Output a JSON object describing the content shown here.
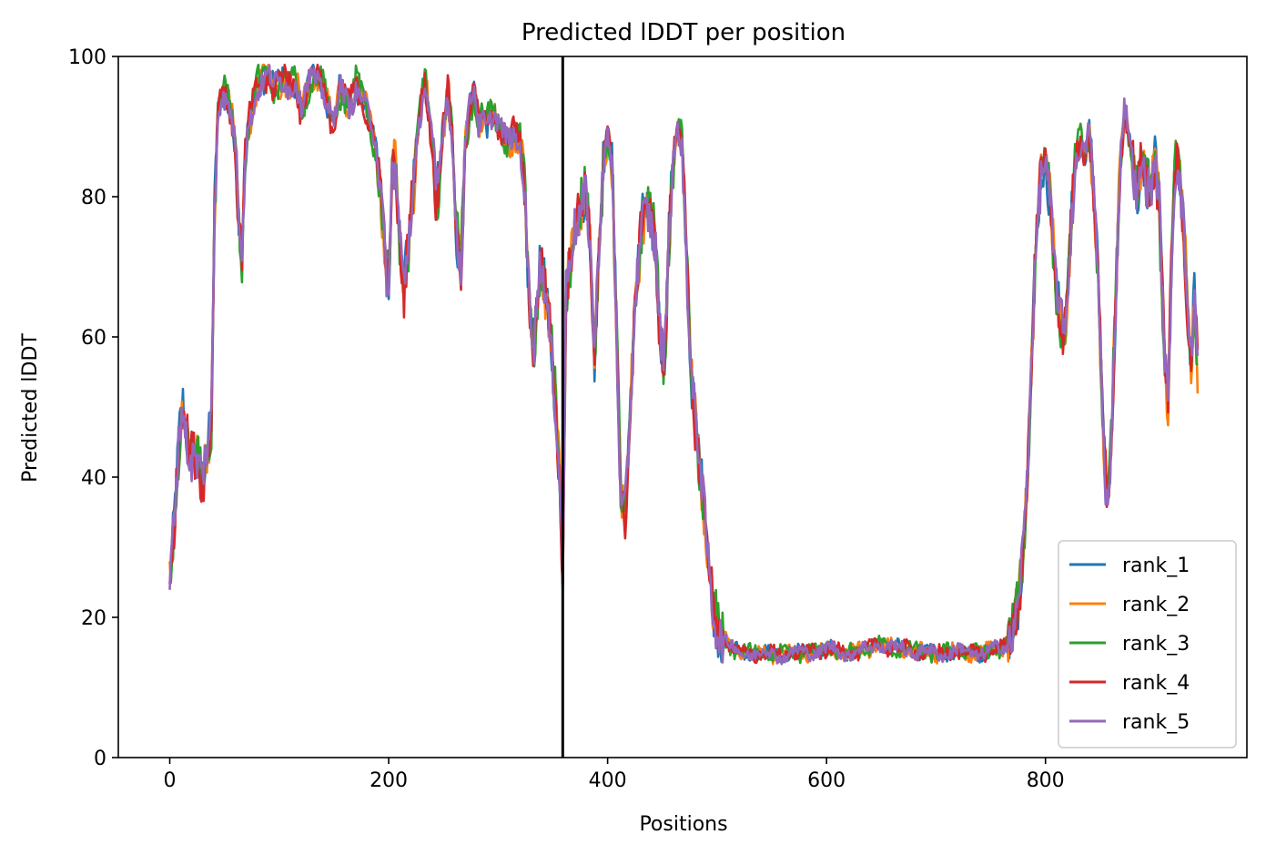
{
  "chart_data": {
    "type": "line",
    "title": "Predicted lDDT per position",
    "xlabel": "Positions",
    "ylabel": "Predicted lDDT",
    "xlim": [
      -47,
      984
    ],
    "ylim": [
      0,
      100
    ],
    "xticks": [
      0,
      200,
      400,
      600,
      800
    ],
    "yticks": [
      0,
      20,
      40,
      60,
      80,
      100
    ],
    "grid": false,
    "legend_position": "lower right",
    "vline_x": 359,
    "vline_color": "#000000",
    "base_profile": [
      [
        0,
        24
      ],
      [
        3,
        31
      ],
      [
        6,
        38
      ],
      [
        9,
        46
      ],
      [
        12,
        50
      ],
      [
        15,
        46
      ],
      [
        18,
        43
      ],
      [
        22,
        44
      ],
      [
        26,
        42
      ],
      [
        30,
        40
      ],
      [
        34,
        43
      ],
      [
        38,
        47
      ],
      [
        41,
        78
      ],
      [
        44,
        92
      ],
      [
        47,
        95
      ],
      [
        50,
        95
      ],
      [
        53,
        94
      ],
      [
        56,
        92
      ],
      [
        60,
        87
      ],
      [
        63,
        77
      ],
      [
        66,
        72
      ],
      [
        69,
        85
      ],
      [
        72,
        90
      ],
      [
        76,
        93
      ],
      [
        80,
        96
      ],
      [
        85,
        97
      ],
      [
        90,
        97
      ],
      [
        95,
        95
      ],
      [
        100,
        96
      ],
      [
        105,
        97
      ],
      [
        110,
        96
      ],
      [
        115,
        97
      ],
      [
        120,
        92
      ],
      [
        125,
        95
      ],
      [
        130,
        97
      ],
      [
        135,
        97
      ],
      [
        140,
        96
      ],
      [
        145,
        93
      ],
      [
        150,
        90
      ],
      [
        155,
        95
      ],
      [
        160,
        94
      ],
      [
        165,
        93
      ],
      [
        170,
        96
      ],
      [
        175,
        95
      ],
      [
        180,
        92
      ],
      [
        185,
        89
      ],
      [
        190,
        85
      ],
      [
        194,
        78
      ],
      [
        197,
        72
      ],
      [
        200,
        66
      ],
      [
        203,
        85
      ],
      [
        206,
        84
      ],
      [
        210,
        74
      ],
      [
        214,
        66
      ],
      [
        218,
        73
      ],
      [
        222,
        80
      ],
      [
        226,
        88
      ],
      [
        230,
        94
      ],
      [
        233,
        97
      ],
      [
        236,
        93
      ],
      [
        240,
        87
      ],
      [
        243,
        80
      ],
      [
        246,
        82
      ],
      [
        250,
        90
      ],
      [
        254,
        95
      ],
      [
        258,
        89
      ],
      [
        262,
        75
      ],
      [
        266,
        70
      ],
      [
        270,
        88
      ],
      [
        274,
        92
      ],
      [
        278,
        95
      ],
      [
        282,
        90
      ],
      [
        286,
        92
      ],
      [
        290,
        91
      ],
      [
        295,
        92
      ],
      [
        300,
        90
      ],
      [
        305,
        88
      ],
      [
        310,
        88
      ],
      [
        315,
        89
      ],
      [
        320,
        88
      ],
      [
        324,
        82
      ],
      [
        327,
        70
      ],
      [
        330,
        62
      ],
      [
        333,
        58
      ],
      [
        336,
        66
      ],
      [
        339,
        70
      ],
      [
        342,
        68
      ],
      [
        345,
        64
      ],
      [
        348,
        60
      ],
      [
        352,
        52
      ],
      [
        356,
        40
      ],
      [
        359,
        27
      ],
      [
        362,
        66
      ],
      [
        366,
        71
      ],
      [
        370,
        75
      ],
      [
        375,
        78
      ],
      [
        380,
        82
      ],
      [
        384,
        74
      ],
      [
        388,
        57
      ],
      [
        392,
        72
      ],
      [
        396,
        84
      ],
      [
        400,
        88
      ],
      [
        404,
        85
      ],
      [
        408,
        63
      ],
      [
        412,
        37
      ],
      [
        416,
        35
      ],
      [
        420,
        46
      ],
      [
        424,
        61
      ],
      [
        428,
        70
      ],
      [
        432,
        77
      ],
      [
        436,
        79
      ],
      [
        440,
        77
      ],
      [
        444,
        73
      ],
      [
        448,
        60
      ],
      [
        452,
        56
      ],
      [
        456,
        74
      ],
      [
        460,
        85
      ],
      [
        464,
        90
      ],
      [
        468,
        88
      ],
      [
        472,
        72
      ],
      [
        476,
        55
      ],
      [
        480,
        48
      ],
      [
        484,
        42
      ],
      [
        488,
        35
      ],
      [
        492,
        28
      ],
      [
        496,
        22
      ],
      [
        500,
        19
      ],
      [
        505,
        17
      ],
      [
        510,
        16
      ],
      [
        515,
        15.5
      ],
      [
        520,
        15
      ],
      [
        530,
        15
      ],
      [
        540,
        14.8
      ],
      [
        550,
        14.8
      ],
      [
        560,
        14.7
      ],
      [
        570,
        14.8
      ],
      [
        580,
        15
      ],
      [
        590,
        15.2
      ],
      [
        600,
        15.5
      ],
      [
        610,
        15.2
      ],
      [
        620,
        15
      ],
      [
        630,
        15.2
      ],
      [
        640,
        15.5
      ],
      [
        645,
        16.5
      ],
      [
        650,
        16
      ],
      [
        660,
        15.6
      ],
      [
        670,
        15.5
      ],
      [
        680,
        15.2
      ],
      [
        690,
        15
      ],
      [
        700,
        14.8
      ],
      [
        710,
        15
      ],
      [
        720,
        15.2
      ],
      [
        730,
        15
      ],
      [
        740,
        15
      ],
      [
        750,
        15.2
      ],
      [
        760,
        15.5
      ],
      [
        765,
        16.5
      ],
      [
        770,
        18
      ],
      [
        775,
        22
      ],
      [
        780,
        30
      ],
      [
        784,
        42
      ],
      [
        788,
        60
      ],
      [
        792,
        75
      ],
      [
        796,
        84
      ],
      [
        800,
        86
      ],
      [
        804,
        80
      ],
      [
        808,
        70
      ],
      [
        812,
        64
      ],
      [
        816,
        60
      ],
      [
        820,
        65
      ],
      [
        824,
        78
      ],
      [
        828,
        86
      ],
      [
        832,
        88
      ],
      [
        836,
        86
      ],
      [
        840,
        89
      ],
      [
        844,
        80
      ],
      [
        848,
        68
      ],
      [
        851,
        55
      ],
      [
        854,
        42
      ],
      [
        857,
        36
      ],
      [
        860,
        44
      ],
      [
        864,
        65
      ],
      [
        868,
        84
      ],
      [
        872,
        92
      ],
      [
        876,
        89
      ],
      [
        880,
        84
      ],
      [
        884,
        80
      ],
      [
        888,
        86
      ],
      [
        892,
        83
      ],
      [
        896,
        80
      ],
      [
        900,
        85
      ],
      [
        904,
        78
      ],
      [
        908,
        60
      ],
      [
        912,
        50
      ],
      [
        915,
        70
      ],
      [
        918,
        83
      ],
      [
        921,
        86
      ],
      [
        924,
        80
      ],
      [
        927,
        74
      ],
      [
        930,
        62
      ],
      [
        933,
        56
      ],
      [
        936,
        65
      ],
      [
        939,
        56
      ]
    ],
    "series": [
      {
        "name": "rank_1",
        "color": "#1f77b4"
      },
      {
        "name": "rank_2",
        "color": "#ff7f0e"
      },
      {
        "name": "rank_3",
        "color": "#2ca02c"
      },
      {
        "name": "rank_4",
        "color": "#d62728"
      },
      {
        "name": "rank_5",
        "color": "#9467bd"
      }
    ]
  }
}
